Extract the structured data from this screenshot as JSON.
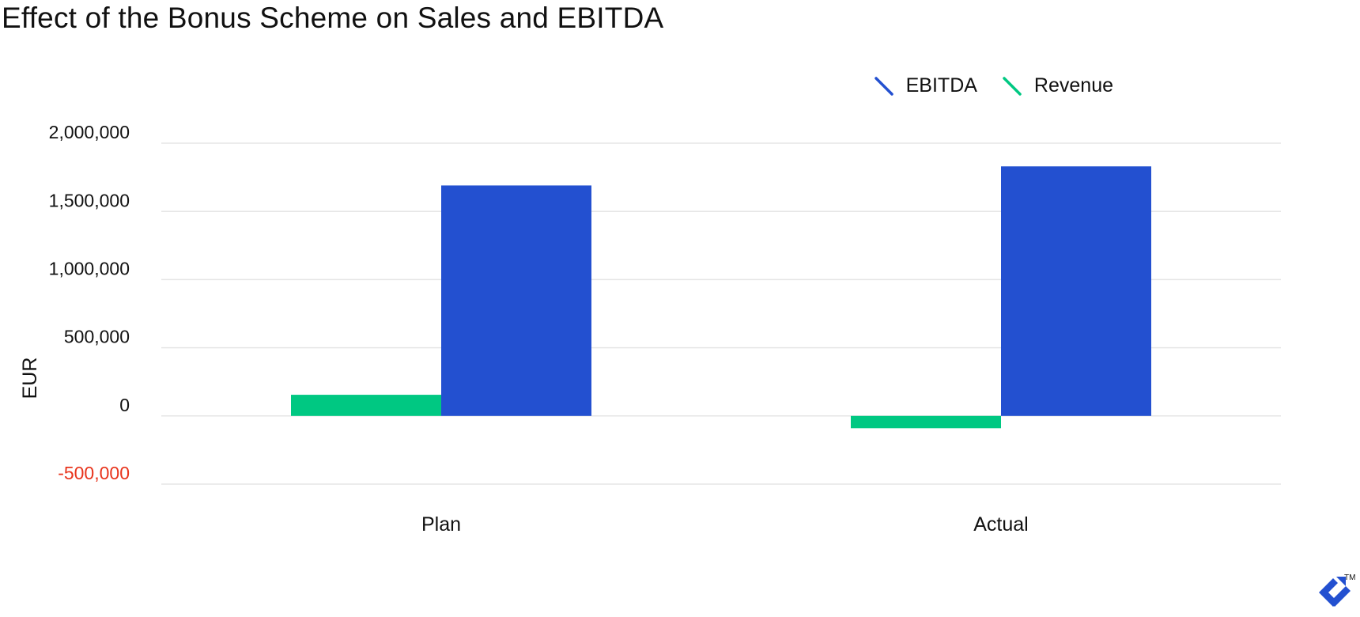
{
  "chart_data": {
    "type": "bar",
    "title": "Effect of the Bonus Scheme on Sales and EBITDA",
    "xlabel": "",
    "ylabel": "EUR",
    "categories": [
      "Plan",
      "Actual"
    ],
    "series": [
      {
        "name": "Revenue",
        "color": "#00c882",
        "values": [
          155000,
          -90000
        ]
      },
      {
        "name": "EBITDA",
        "color": "#2350d0",
        "values": [
          1690000,
          1830000
        ]
      }
    ],
    "ylim": [
      -500000,
      2000000
    ],
    "yticks": [
      {
        "value": 2000000,
        "label": "2,000,000"
      },
      {
        "value": 1500000,
        "label": "1,500,000"
      },
      {
        "value": 1000000,
        "label": "1,000,000"
      },
      {
        "value": 500000,
        "label": "500,000"
      },
      {
        "value": 0,
        "label": "0"
      },
      {
        "value": -500000,
        "label": "-500,000"
      }
    ],
    "legend": {
      "position": "top-right",
      "order": [
        "EBITDA",
        "Revenue"
      ]
    },
    "grid": true,
    "negative_tick_color": "#e8341c"
  },
  "logo": {
    "name": "toptal-logo-icon",
    "trademark": "TM",
    "color": "#2350d0"
  }
}
